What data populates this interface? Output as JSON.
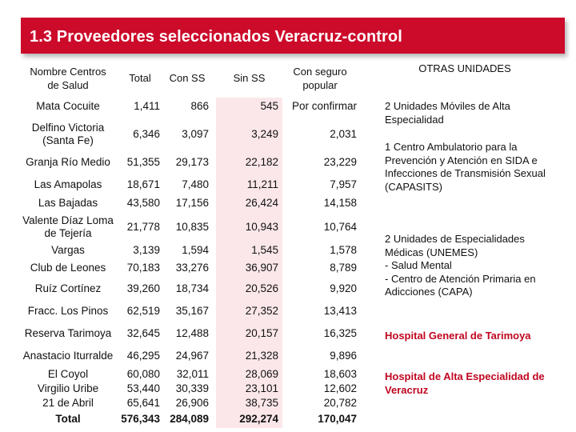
{
  "title": "1.3 Proveedores seleccionados Veracruz-control",
  "headers": {
    "name_1": "Nombre Centros",
    "name_2": "de Salud",
    "total": "Total",
    "con_ss": "Con SS",
    "sin_ss": "Sin SS",
    "popular_1": "Con seguro",
    "popular_2": "popular",
    "otras": "OTRAS UNIDADES"
  },
  "rows": [
    {
      "name": [
        "Mata Cocuite"
      ],
      "total": "1,411",
      "con_ss": "866",
      "sin_ss": "545",
      "popular": "Por confirmar"
    },
    {
      "name": [
        "Delfino Victoria",
        "(Santa Fe)"
      ],
      "total": "6,346",
      "con_ss": "3,097",
      "sin_ss": "3,249",
      "popular": "2,031"
    },
    {
      "name": [
        "Granja Río Medio"
      ],
      "total": "51,355",
      "con_ss": "29,173",
      "sin_ss": "22,182",
      "popular": "23,229"
    },
    {
      "name": [
        "Las Amapolas"
      ],
      "total": "18,671",
      "con_ss": "7,480",
      "sin_ss": "11,211",
      "popular": "7,957"
    },
    {
      "name": [
        "Las Bajadas"
      ],
      "total": "43,580",
      "con_ss": "17,156",
      "sin_ss": "26,424",
      "popular": "14,158"
    },
    {
      "name": [
        "Valente Díaz Loma",
        "de Tejería"
      ],
      "total": "21,778",
      "con_ss": "10,835",
      "sin_ss": "10,943",
      "popular": "10,764"
    },
    {
      "name": [
        "Vargas"
      ],
      "total": "3,139",
      "con_ss": "1,594",
      "sin_ss": "1,545",
      "popular": "1,578"
    },
    {
      "name": [
        "Club de Leones"
      ],
      "total": "70,183",
      "con_ss": "33,276",
      "sin_ss": "36,907",
      "popular": "8,789"
    },
    {
      "name": [
        "Ruíz Cortínez"
      ],
      "total": "39,260",
      "con_ss": "18,734",
      "sin_ss": "20,526",
      "popular": "9,920"
    },
    {
      "name": [
        "Fracc. Los Pinos"
      ],
      "total": "62,519",
      "con_ss": "35,167",
      "sin_ss": "27,352",
      "popular": "13,413"
    },
    {
      "name": [
        "Reserva Tarimoya"
      ],
      "total": "32,645",
      "con_ss": "12,488",
      "sin_ss": "20,157",
      "popular": "16,325"
    },
    {
      "name": [
        "Anastacio Iturralde"
      ],
      "total": "46,295",
      "con_ss": "24,967",
      "sin_ss": "21,328",
      "popular": "9,896"
    },
    {
      "name": [
        "El Coyol"
      ],
      "total": "60,080",
      "con_ss": "32,011",
      "sin_ss": "28,069",
      "popular": "18,603"
    },
    {
      "name": [
        "Virgilio Uribe"
      ],
      "total": "53,440",
      "con_ss": "30,339",
      "sin_ss": "23,101",
      "popular": "12,602"
    },
    {
      "name": [
        "21 de Abril"
      ],
      "total": "65,641",
      "con_ss": "26,906",
      "sin_ss": "38,735",
      "popular": "20,782"
    },
    {
      "name": [
        "Total"
      ],
      "total": "576,343",
      "con_ss": "284,089",
      "sin_ss": "292,274",
      "popular": "170,047"
    }
  ],
  "otras_unidades": [
    "2 Unidades Móviles de Alta Especialidad",
    "1 Centro Ambulatorio para la Prevención y Atención en SIDA e Infecciones de Transmisión Sexual (CAPASITS)",
    "2 Unidades de Especialidades Médicas (UNEMES)",
    "- Salud Mental",
    "- Centro de Atención Primaria en Adicciones (CAPA)",
    "Hospital General de Tarimoya",
    "Hospital de Alta Especialidad de Veracruz"
  ]
}
